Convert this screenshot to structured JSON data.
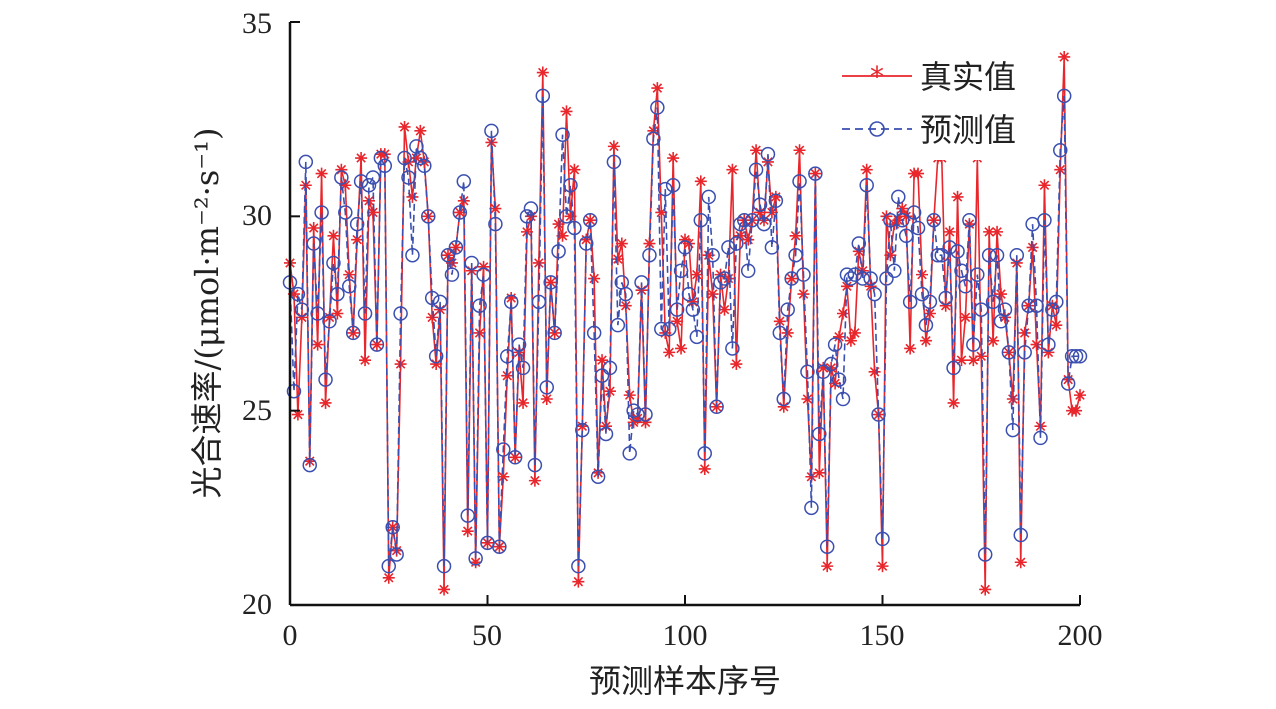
{
  "chart_data": {
    "type": "line",
    "title": "",
    "xlabel": "预测样本序号",
    "ylabel": "光合速率/(μmol·m⁻²·s⁻¹)",
    "xlim": [
      0,
      200
    ],
    "ylim": [
      20,
      35
    ],
    "xticks": [
      "0",
      "50",
      "100",
      "150",
      "200"
    ],
    "yticks": [
      "20",
      "25",
      "30",
      "35"
    ],
    "grid": false,
    "legend_position": "top-right",
    "series": [
      {
        "name": "真实值",
        "color": "#e8262b",
        "marker": "asterisk",
        "line": "solid",
        "values": [
          28.8,
          28.0,
          24.9,
          27.4,
          30.8,
          23.7,
          29.7,
          26.7,
          31.1,
          25.2,
          27.4,
          29.5,
          27.5,
          31.2,
          30.8,
          28.5,
          27.0,
          29.4,
          31.5,
          26.3,
          30.4,
          30.1,
          26.7,
          31.6,
          31.6,
          20.7,
          22.0,
          21.4,
          26.2,
          32.3,
          31.4,
          30.5,
          31.5,
          32.2,
          31.4,
          30.0,
          27.4,
          26.2,
          27.6,
          20.4,
          29.0,
          28.8,
          29.2,
          30.1,
          30.4,
          21.9,
          28.6,
          21.1,
          27.0,
          28.7,
          21.6,
          31.9,
          30.2,
          21.5,
          23.3,
          25.9,
          27.9,
          23.8,
          26.5,
          25.2,
          29.6,
          30.0,
          23.2,
          28.8,
          33.7,
          25.3,
          28.3,
          27.0,
          29.8,
          29.5,
          32.7,
          30.0,
          31.2,
          20.6,
          24.6,
          29.4,
          29.9,
          28.4,
          23.4,
          26.3,
          24.6,
          25.5,
          31.8,
          28.9,
          29.3,
          27.7,
          25.4,
          24.7,
          24.8,
          28.1,
          24.7,
          29.3,
          32.2,
          33.3,
          30.1,
          27.0,
          26.5,
          31.5,
          27.3,
          26.6,
          29.4,
          29.3,
          27.8,
          28.5,
          30.9,
          23.5,
          29.0,
          28.0,
          25.1,
          28.5,
          27.6,
          28.4,
          31.2,
          26.2,
          29.5,
          29.9,
          29.4,
          29.9,
          31.7,
          30.1,
          29.9,
          31.4,
          30.1,
          30.5,
          27.3,
          25.1,
          27.0,
          28.4,
          29.5,
          31.7,
          28.0,
          25.3,
          23.3,
          31.1,
          23.4,
          26.1,
          21.0,
          26.1,
          25.7,
          26.9,
          27.5,
          28.2,
          26.8,
          27.0,
          29.1,
          28.6,
          31.2,
          28.2,
          26.0,
          24.9,
          21.0,
          30.0,
          29.0,
          29.8,
          29.9,
          30.2,
          30.0,
          26.6,
          31.1,
          31.1,
          28.5,
          26.8,
          27.5,
          29.9,
          31.5,
          31.5,
          27.7,
          29.6,
          25.2,
          30.5,
          26.3,
          27.4,
          29.8,
          26.3,
          31.5,
          26.4,
          20.4,
          29.6,
          26.8,
          29.6,
          28.0,
          27.4,
          26.5,
          25.3,
          28.8,
          21.1,
          27.0,
          27.7,
          29.2,
          26.7,
          24.6,
          30.8,
          26.5,
          27.7,
          27.2,
          31.2,
          34.1,
          25.8,
          25.0,
          25.0,
          25.4
        ]
      },
      {
        "name": "预测值",
        "color": "#3a4fb0",
        "marker": "circle",
        "line": "dashed",
        "values": [
          28.3,
          25.5,
          28.0,
          27.6,
          31.4,
          23.6,
          29.3,
          27.5,
          30.1,
          25.8,
          27.3,
          28.8,
          28.0,
          31.0,
          30.1,
          28.2,
          27.0,
          29.8,
          30.9,
          27.5,
          30.8,
          31.0,
          26.7,
          31.5,
          31.3,
          21.0,
          22.0,
          21.3,
          27.5,
          31.5,
          31.0,
          29.0,
          31.8,
          31.5,
          31.3,
          30.0,
          27.9,
          26.4,
          27.8,
          21.0,
          29.0,
          28.5,
          29.2,
          30.1,
          30.9,
          22.3,
          28.8,
          21.2,
          27.7,
          28.5,
          21.6,
          32.2,
          29.8,
          21.5,
          24.0,
          26.4,
          27.8,
          23.8,
          26.7,
          26.1,
          30.0,
          30.2,
          23.6,
          27.8,
          33.1,
          25.6,
          28.3,
          27.0,
          29.1,
          32.1,
          30.0,
          30.8,
          29.7,
          21.0,
          24.5,
          29.3,
          29.9,
          27.0,
          23.3,
          25.9,
          24.4,
          26.1,
          31.4,
          27.2,
          28.3,
          28.0,
          23.9,
          25.0,
          24.9,
          28.3,
          24.9,
          29.0,
          32.0,
          32.8,
          27.1,
          30.7,
          27.1,
          30.8,
          27.6,
          28.6,
          29.2,
          28.0,
          27.6,
          26.9,
          29.9,
          23.9,
          30.5,
          29.0,
          25.1,
          28.3,
          28.4,
          29.2,
          26.6,
          29.3,
          29.8,
          29.9,
          28.6,
          29.9,
          31.2,
          30.3,
          29.8,
          31.6,
          29.2,
          30.4,
          27.0,
          25.3,
          27.6,
          28.4,
          29.0,
          30.9,
          28.5,
          26.0,
          22.5,
          31.1,
          24.4,
          26.0,
          21.5,
          26.2,
          26.7,
          25.8,
          25.3,
          28.5,
          28.4,
          28.5,
          29.3,
          28.4,
          30.8,
          28.4,
          28.0,
          24.9,
          21.7,
          28.4,
          29.9,
          28.6,
          30.5,
          29.9,
          29.5,
          27.8,
          30.1,
          29.7,
          28.0,
          27.2,
          27.8,
          29.9,
          29.0,
          29.0,
          27.9,
          29.2,
          26.1,
          29.1,
          28.6,
          28.2,
          29.9,
          26.7,
          28.5,
          27.6,
          21.3,
          29.0,
          27.8,
          29.0,
          27.3,
          27.6,
          26.5,
          24.5,
          29.0,
          21.8,
          26.5,
          27.7,
          29.8,
          27.7,
          24.3,
          29.9,
          26.7,
          27.6,
          27.8,
          31.7,
          33.1,
          25.7,
          26.4,
          26.4,
          26.4
        ]
      }
    ]
  }
}
